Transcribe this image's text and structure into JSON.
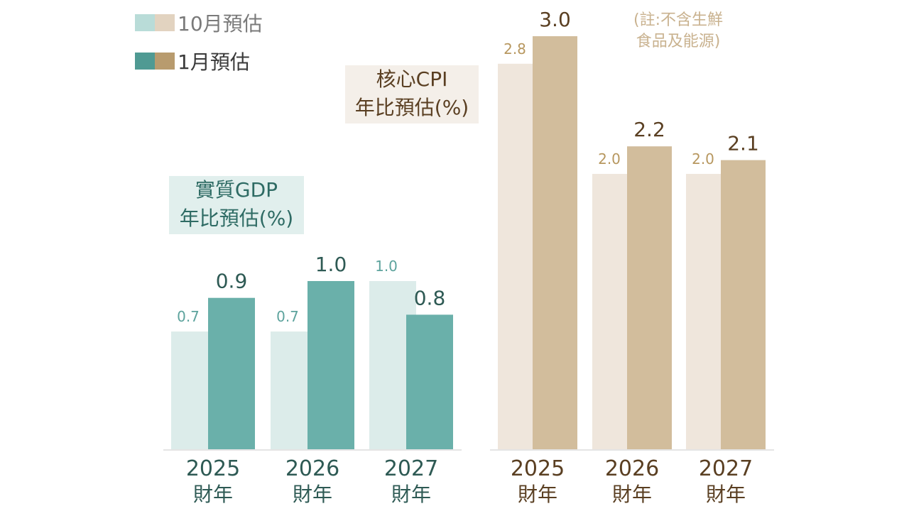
{
  "legend": {
    "oct_label": "10月預估",
    "jan_label": "1月預估"
  },
  "colors": {
    "gdp_oct": "#dcecea",
    "gdp_jan": "#6ab0aa",
    "gdp_label_oct": "#5da39d",
    "gdp_label_jan": "#2e5a54",
    "cpi_oct": "#efe6dc",
    "cpi_jan": "#d2bd9c",
    "cpi_label_oct": "#b7975f",
    "cpi_label_jan": "#5a3f22",
    "legend_oct_teal": "#b9dcd8",
    "legend_oct_tan": "#e2d3c0",
    "legend_jan_teal": "#4f9a93",
    "legend_jan_tan": "#b89b6e",
    "gdp_title_bg": "#e1efed",
    "gdp_title_text": "#2e6b64",
    "cpi_title_bg": "#f4efe9",
    "cpi_title_text": "#5a3f22",
    "legend_oct_text": "#7a7a7a",
    "legend_jan_text": "#3a3a3a",
    "gdp_axis_text": "#2e5a54",
    "cpi_axis_text": "#5a3f22"
  },
  "chart_data": [
    {
      "type": "bar",
      "id": "gdp",
      "title_line1": "實質GDP",
      "title_line2": "年比預估(%)",
      "categories": [
        "2025",
        "2026",
        "2027"
      ],
      "category_suffix": "財年",
      "series": [
        {
          "name": "10月預估",
          "values": [
            0.7,
            0.7,
            1.0
          ],
          "labels": [
            "0.7",
            "0.7",
            "1.0"
          ]
        },
        {
          "name": "1月預估",
          "values": [
            0.9,
            1.0,
            0.8
          ],
          "labels": [
            "0.9",
            "1.0",
            "0.8"
          ]
        }
      ],
      "ylim": [
        0,
        1.0
      ]
    },
    {
      "type": "bar",
      "id": "cpi",
      "title_line1": "核心CPI",
      "title_line2": "年比預估(%)",
      "note_line1": "(註:不含生鮮",
      "note_line2": "食品及能源)",
      "categories": [
        "2025",
        "2026",
        "2027"
      ],
      "category_suffix": "財年",
      "series": [
        {
          "name": "10月預估",
          "values": [
            2.8,
            2.0,
            2.0
          ],
          "labels": [
            "2.8",
            "2.0",
            "2.0"
          ]
        },
        {
          "name": "1月預估",
          "values": [
            3.0,
            2.2,
            2.1
          ],
          "labels": [
            "3.0",
            "2.2",
            "2.1"
          ]
        }
      ],
      "ylim": [
        0,
        3.0
      ]
    }
  ]
}
